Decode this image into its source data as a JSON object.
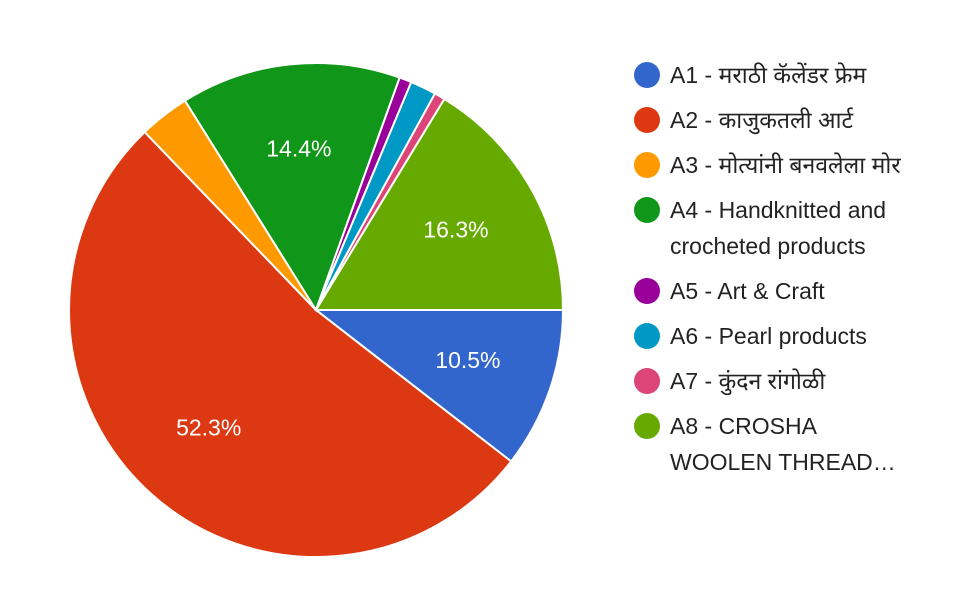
{
  "chart_data": {
    "type": "pie",
    "categories": [
      "A1 - मराठी कॅलेंडर फ्रेम",
      "A2 - काजुकतली आर्ट",
      "A3 - मोत्यांनी बनवलेला मोर",
      "A4 - Handknitted and crocheted products",
      "A5 - Art & Craft",
      "A6 - Pearl products",
      "A7 - कुंदन रांगोळी",
      "A8 - CROSHA WOOLEN THREAD…"
    ],
    "values": [
      10.5,
      52.3,
      3.3,
      14.4,
      0.8,
      1.7,
      0.7,
      16.3
    ],
    "value_labels": [
      "10.5%",
      "52.3%",
      null,
      "14.4%",
      null,
      null,
      null,
      "16.3%"
    ],
    "colors": [
      "#3366cc",
      "#dc3912",
      "#ff9900",
      "#109618",
      "#990099",
      "#0099c6",
      "#dd4477",
      "#66aa00"
    ],
    "legend": "right"
  }
}
